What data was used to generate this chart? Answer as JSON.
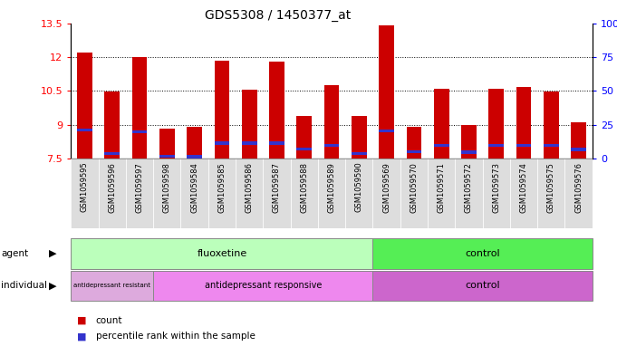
{
  "title": "GDS5308 / 1450377_at",
  "samples": [
    "GSM1059595",
    "GSM1059596",
    "GSM1059597",
    "GSM1059598",
    "GSM1059584",
    "GSM1059585",
    "GSM1059586",
    "GSM1059587",
    "GSM1059588",
    "GSM1059589",
    "GSM1059590",
    "GSM1059569",
    "GSM1059570",
    "GSM1059571",
    "GSM1059572",
    "GSM1059573",
    "GSM1059574",
    "GSM1059575",
    "GSM1059576"
  ],
  "red_values": [
    12.2,
    10.45,
    11.98,
    8.82,
    8.9,
    11.85,
    10.55,
    11.78,
    9.4,
    10.75,
    9.4,
    13.42,
    8.9,
    10.6,
    9.0,
    10.6,
    10.65,
    10.45,
    9.1
  ],
  "blue_values": [
    8.75,
    7.72,
    8.68,
    7.6,
    7.58,
    8.18,
    8.18,
    8.18,
    7.92,
    8.08,
    7.72,
    8.72,
    7.8,
    8.08,
    7.78,
    8.08,
    8.08,
    8.08,
    7.9
  ],
  "ymin": 7.5,
  "ymax": 13.5,
  "yticks": [
    7.5,
    9.0,
    10.5,
    12.0,
    13.5
  ],
  "ytick_labels": [
    "7.5",
    "9",
    "10.5",
    "12",
    "13.5"
  ],
  "right_ytick_labels": [
    "0",
    "25",
    "50",
    "75",
    "100%"
  ],
  "dotted_lines": [
    9.0,
    10.5,
    12.0
  ],
  "bar_color": "#cc0000",
  "blue_color": "#3333cc",
  "agent_fluoxetine_range": [
    0,
    11
  ],
  "agent_control_range": [
    11,
    19
  ],
  "individual_resistant_range": [
    0,
    3
  ],
  "individual_responsive_range": [
    3,
    11
  ],
  "individual_control_range": [
    11,
    19
  ],
  "agent_fluoxetine_color": "#bbffbb",
  "agent_control_color": "#55ee55",
  "individual_resistant_color": "#ddaadd",
  "individual_responsive_color": "#ee88ee",
  "individual_control_color": "#cc66cc",
  "bar_width": 0.55,
  "blue_bar_height": 0.13,
  "xticklabel_bg": "#dddddd"
}
